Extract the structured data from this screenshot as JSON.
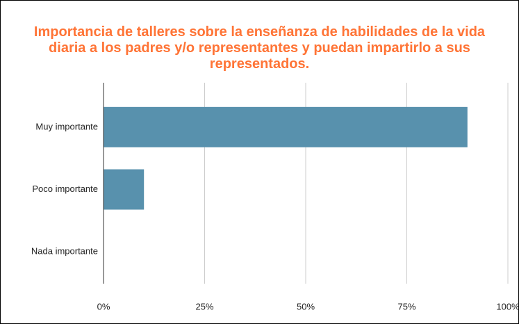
{
  "chart_data": {
    "type": "bar",
    "orientation": "horizontal",
    "title": "Importancia de talleres sobre la enseñanza de habilidades de la vida diaria a los padres y/o representantes y puedan impartirlo a sus representados.",
    "categories": [
      "Muy importante",
      "Poco importante",
      "Nada importante"
    ],
    "values": [
      90,
      10,
      0
    ],
    "color": "#5891ad",
    "xlim": [
      0,
      100
    ],
    "xticks": [
      {
        "value": 0,
        "label": "0%"
      },
      {
        "value": 25,
        "label": "25%"
      },
      {
        "value": 50,
        "label": "50%"
      },
      {
        "value": 75,
        "label": "75%"
      },
      {
        "value": 100,
        "label": "100%"
      }
    ],
    "grid": true
  }
}
